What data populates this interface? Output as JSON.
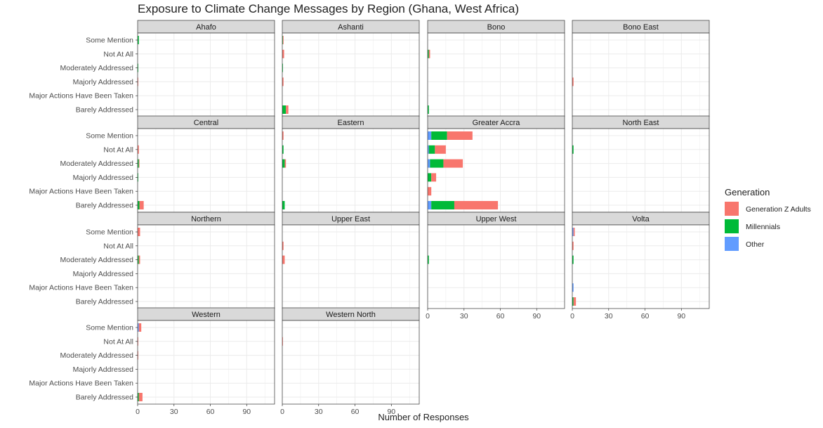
{
  "chart_data": {
    "type": "bar",
    "orientation": "horizontal",
    "stacked": true,
    "faceted": true,
    "title": "Exposure to Climate Change Messages by Region (Ghana, West Africa)",
    "xlabel": "Number of Responses",
    "ylabel": "",
    "xlim": [
      0,
      113
    ],
    "x_ticks": [
      "0",
      "30",
      "60",
      "90"
    ],
    "x_tick_values": [
      0,
      30,
      60,
      90
    ],
    "categories": [
      "Some Mention",
      "Not At All",
      "Moderately Addressed",
      "Majorly Addressed",
      "Major Actions Have Been Taken",
      "Barely Addressed"
    ],
    "series_order": [
      "Other",
      "Millennials",
      "Generation Z Adults"
    ],
    "colors": {
      "Generation Z Adults": "#F8766D",
      "Millennials": "#00BA38",
      "Other": "#619CFF"
    },
    "grid": true,
    "legend": {
      "title": "Generation",
      "position": "right",
      "entries": [
        "Generation Z Adults",
        "Millennials",
        "Other"
      ]
    },
    "facets": [
      {
        "name": "Ahafo",
        "values": {
          "Some Mention": {
            "Millennials": 1
          },
          "Moderately Addressed": {
            "Millennials": 0.5
          },
          "Majorly Addressed": {
            "Generation Z Adults": 0.5
          }
        }
      },
      {
        "name": "Ashanti",
        "values": {
          "Some Mention": {
            "Millennials": 0.5,
            "Generation Z Adults": 0.5
          },
          "Not At All": {
            "Generation Z Adults": 1.5
          },
          "Moderately Addressed": {
            "Millennials": 0.5
          },
          "Majorly Addressed": {
            "Generation Z Adults": 1
          },
          "Barely Addressed": {
            "Millennials": 3,
            "Generation Z Adults": 2
          }
        }
      },
      {
        "name": "Bono",
        "values": {
          "Not At All": {
            "Millennials": 1,
            "Generation Z Adults": 1
          },
          "Barely Addressed": {
            "Millennials": 1
          }
        }
      },
      {
        "name": "Bono East",
        "values": {
          "Majorly Addressed": {
            "Generation Z Adults": 1
          }
        }
      },
      {
        "name": "Central",
        "values": {
          "Not At All": {
            "Generation Z Adults": 1
          },
          "Moderately Addressed": {
            "Millennials": 1,
            "Generation Z Adults": 0.5
          },
          "Majorly Addressed": {
            "Millennials": 0.5
          },
          "Barely Addressed": {
            "Millennials": 1.5,
            "Generation Z Adults": 3.5
          }
        }
      },
      {
        "name": "Eastern",
        "values": {
          "Some Mention": {
            "Generation Z Adults": 1
          },
          "Not At All": {
            "Millennials": 1
          },
          "Moderately Addressed": {
            "Millennials": 2,
            "Generation Z Adults": 1
          },
          "Barely Addressed": {
            "Millennials": 2
          }
        }
      },
      {
        "name": "Greater Accra",
        "values": {
          "Some Mention": {
            "Other": 3,
            "Millennials": 13,
            "Generation Z Adults": 21
          },
          "Not At All": {
            "Other": 1,
            "Millennials": 5,
            "Generation Z Adults": 9
          },
          "Moderately Addressed": {
            "Other": 2,
            "Millennials": 11,
            "Generation Z Adults": 16
          },
          "Majorly Addressed": {
            "Millennials": 3,
            "Generation Z Adults": 4
          },
          "Major Actions Have Been Taken": {
            "Generation Z Adults": 3
          },
          "Barely Addressed": {
            "Other": 3,
            "Millennials": 19,
            "Generation Z Adults": 36
          }
        }
      },
      {
        "name": "North East",
        "values": {
          "Not At All": {
            "Millennials": 1
          }
        }
      },
      {
        "name": "Northern",
        "values": {
          "Some Mention": {
            "Generation Z Adults": 2
          },
          "Moderately Addressed": {
            "Millennials": 1,
            "Generation Z Adults": 1
          }
        }
      },
      {
        "name": "Upper East",
        "values": {
          "Not At All": {
            "Generation Z Adults": 1
          },
          "Moderately Addressed": {
            "Generation Z Adults": 2
          }
        }
      },
      {
        "name": "Upper West",
        "values": {
          "Moderately Addressed": {
            "Millennials": 1
          }
        }
      },
      {
        "name": "Volta",
        "values": {
          "Some Mention": {
            "Other": 1,
            "Generation Z Adults": 1
          },
          "Not At All": {
            "Generation Z Adults": 1
          },
          "Moderately Addressed": {
            "Millennials": 1
          },
          "Major Actions Have Been Taken": {
            "Other": 1
          },
          "Barely Addressed": {
            "Millennials": 1,
            "Generation Z Adults": 2
          }
        }
      },
      {
        "name": "Western",
        "values": {
          "Some Mention": {
            "Other": 1,
            "Generation Z Adults": 2
          },
          "Not At All": {
            "Generation Z Adults": 0.5
          },
          "Moderately Addressed": {
            "Generation Z Adults": 0.5
          },
          "Barely Addressed": {
            "Millennials": 1,
            "Generation Z Adults": 3
          }
        }
      },
      {
        "name": "Western North",
        "values": {
          "Not At All": {
            "Generation Z Adults": 0.5
          }
        }
      }
    ]
  }
}
